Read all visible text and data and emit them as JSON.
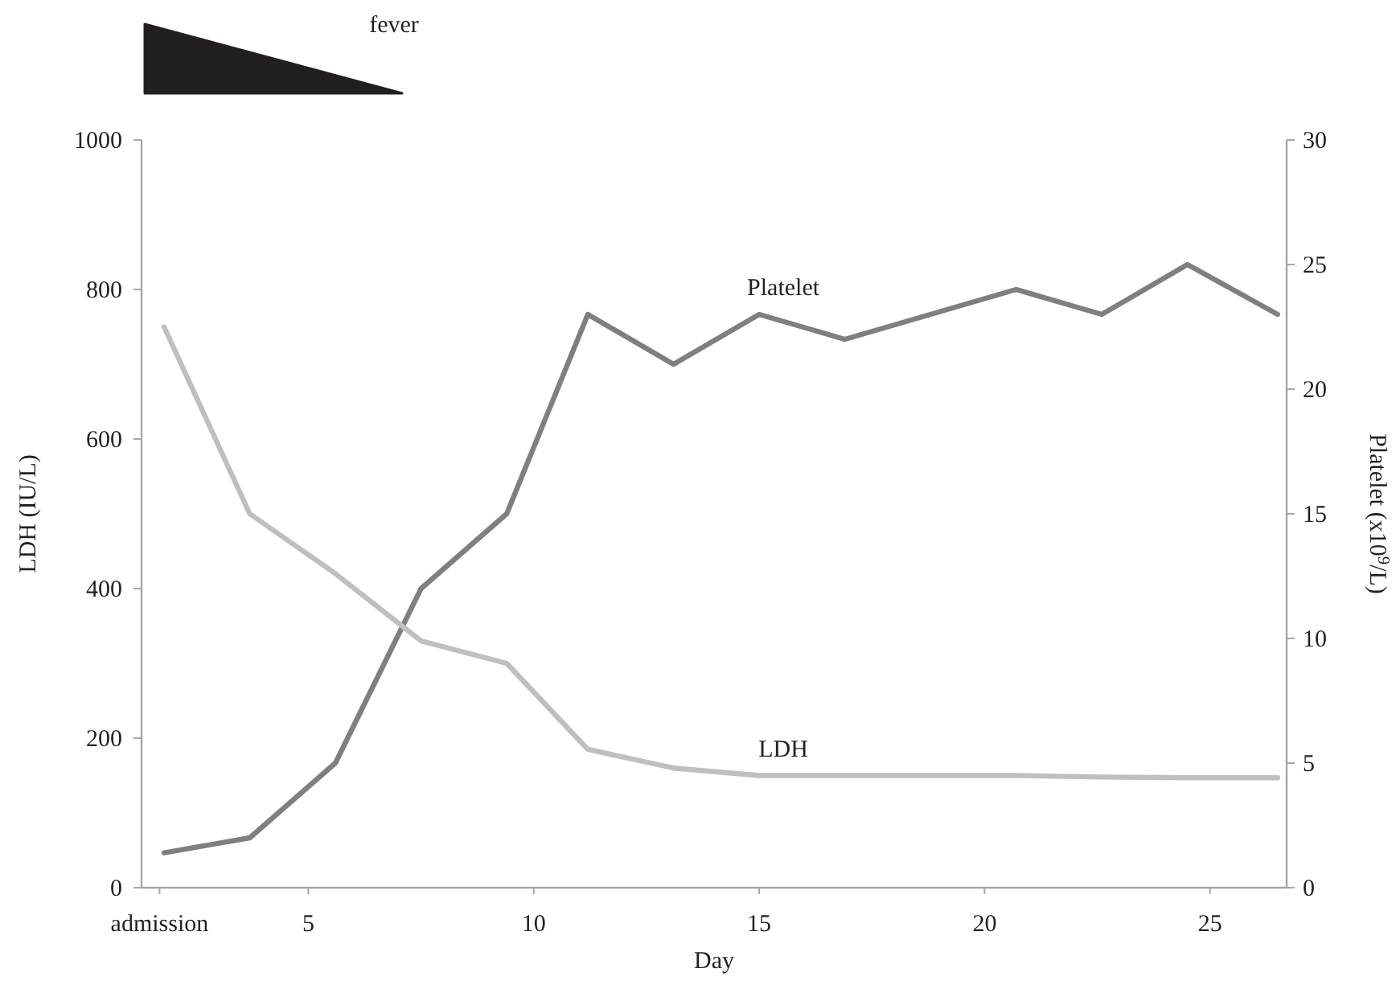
{
  "chart_data": {
    "type": "line",
    "xlabel": "Day",
    "ylabel": "LDH (IU/L)",
    "y2label": "Platelet (x10$^{9}$/L)",
    "x": [
      1.8,
      3.7,
      5.6,
      7.5,
      9.4,
      11.2,
      13.1,
      15.0,
      16.9,
      18.8,
      20.7,
      22.6,
      24.5,
      26.5
    ],
    "xlim": [
      1.3,
      26.7
    ],
    "xticks": [
      {
        "value": 1.7,
        "label": "admission"
      },
      5,
      10,
      15,
      20,
      25
    ],
    "ylim": [
      0,
      1000
    ],
    "yticks": [
      0,
      200,
      400,
      600,
      800,
      1000
    ],
    "y2lim": [
      0,
      30
    ],
    "y2ticks": [
      0,
      5,
      10,
      15,
      20,
      25,
      30
    ],
    "series": [
      {
        "name": "Platelet",
        "color": "#7f7f7f",
        "axis": "y2",
        "values": [
          1.4,
          2.0,
          5.0,
          12.0,
          15.0,
          23.0,
          21.0,
          23.0,
          22.0,
          23.0,
          24.0,
          23.0,
          25.0,
          23.0
        ]
      },
      {
        "name": "LDH",
        "color": "#bfbfbf",
        "values": [
          750,
          500,
          420,
          330,
          300,
          185,
          160,
          150,
          150,
          150,
          150,
          148,
          147,
          147
        ]
      }
    ],
    "annotations": [
      "fever"
    ],
    "grid": false,
    "marker": "none",
    "line_style": "solid"
  }
}
